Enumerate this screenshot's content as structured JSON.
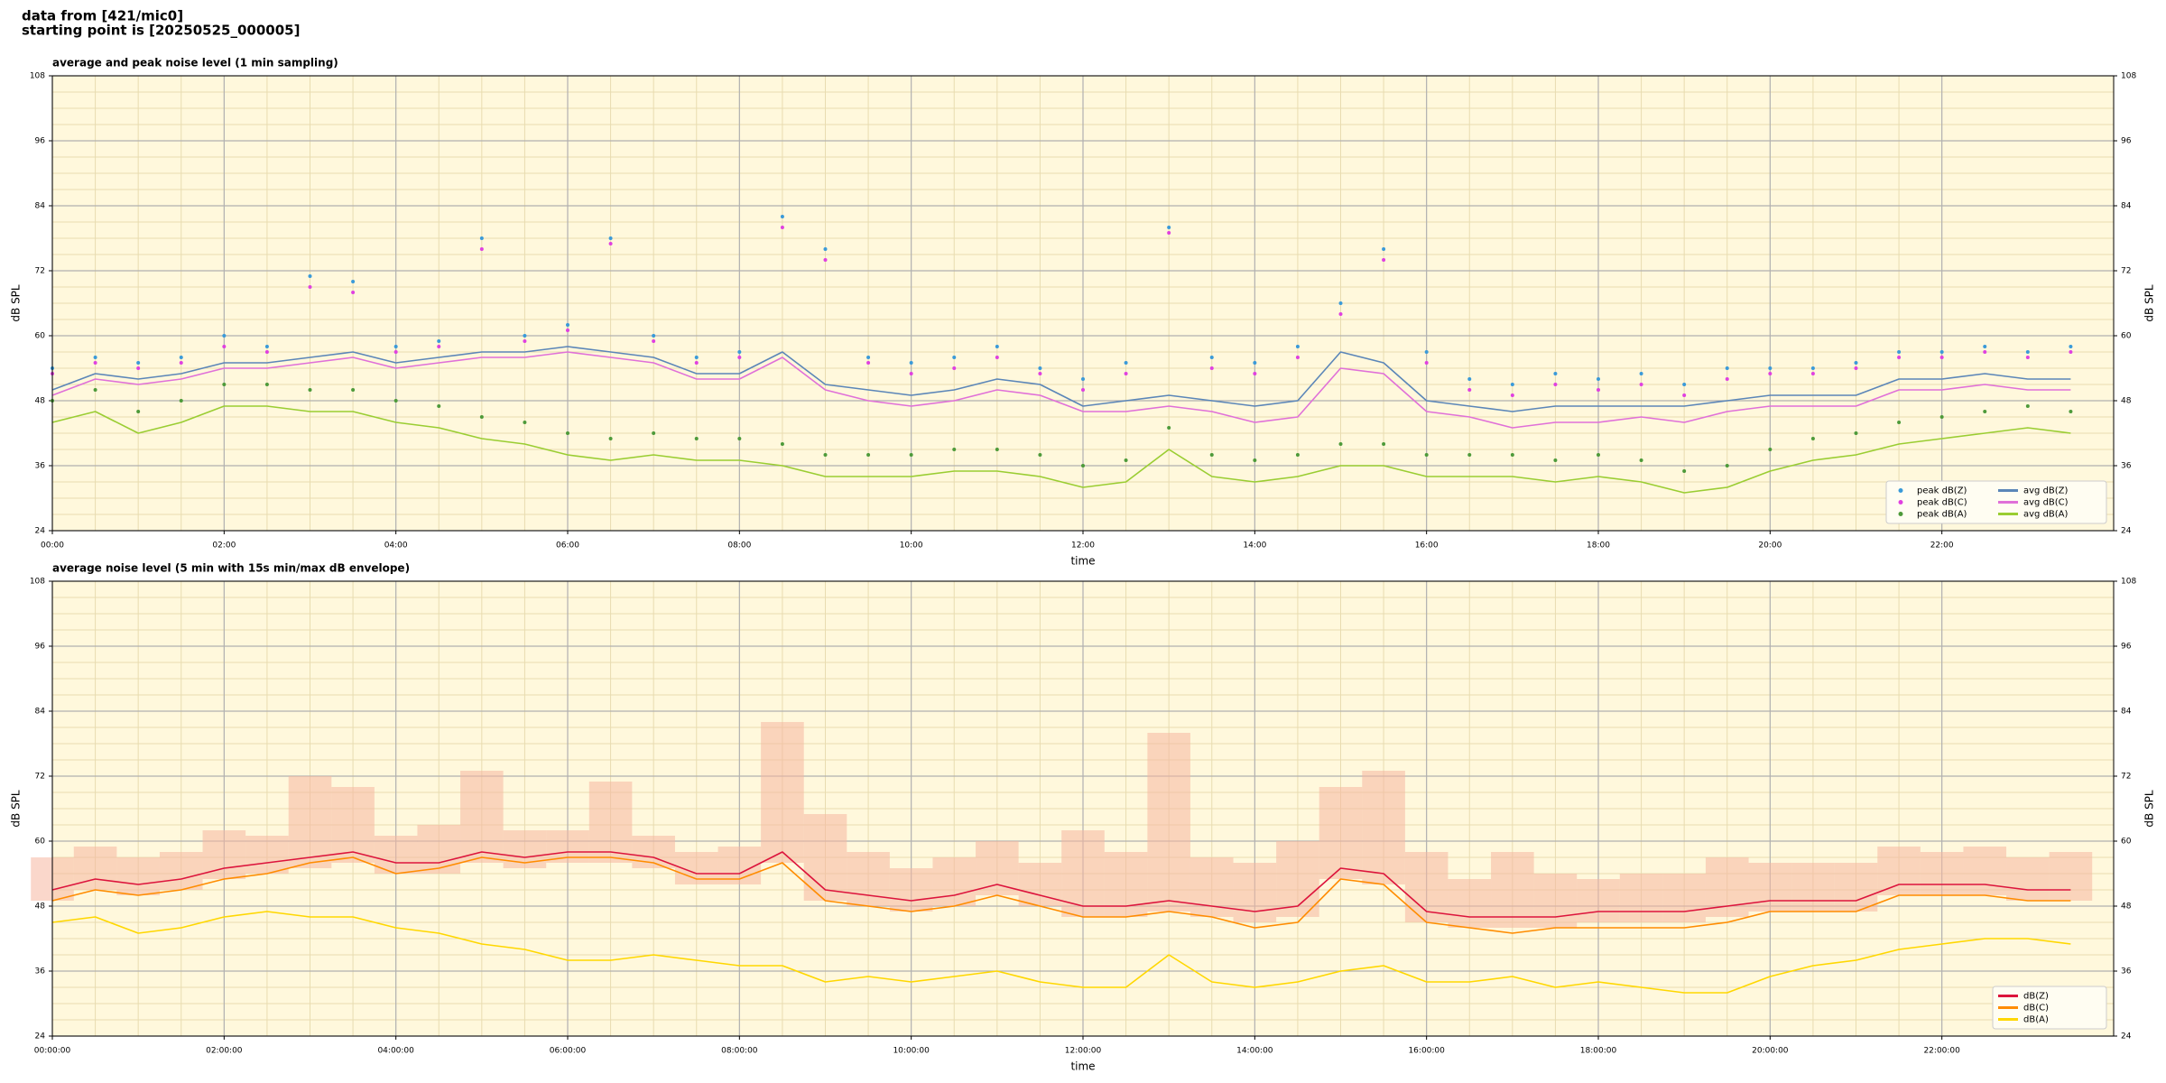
{
  "header": {
    "source": "data from [421/mic0]",
    "start": "starting point is [20250525_000005]"
  },
  "chart_data": [
    {
      "type": "line",
      "title": "average and peak noise level (1 min sampling)",
      "xlabel": "time",
      "ylabel": "dB SPL",
      "background": "#fff8dc",
      "grid": true,
      "legend": "lower right",
      "xlim": [
        0,
        24
      ],
      "ylim": [
        24,
        108
      ],
      "xticks": [
        {
          "value": 0,
          "label": "00:00"
        },
        {
          "value": 2,
          "label": "02:00"
        },
        {
          "value": 4,
          "label": "04:00"
        },
        {
          "value": 6,
          "label": "06:00"
        },
        {
          "value": 8,
          "label": "08:00"
        },
        {
          "value": 10,
          "label": "10:00"
        },
        {
          "value": 12,
          "label": "12:00"
        },
        {
          "value": 14,
          "label": "14:00"
        },
        {
          "value": 16,
          "label": "16:00"
        },
        {
          "value": 18,
          "label": "18:00"
        },
        {
          "value": 20,
          "label": "20:00"
        },
        {
          "value": 22,
          "label": "22:00"
        }
      ],
      "yticks": [
        24,
        36,
        48,
        60,
        72,
        84,
        96,
        108
      ],
      "x": [
        0,
        0.5,
        1,
        1.5,
        2,
        2.5,
        3,
        3.5,
        4,
        4.5,
        5,
        5.5,
        6,
        6.5,
        7,
        7.5,
        8,
        8.5,
        9,
        9.5,
        10,
        10.5,
        11,
        11.5,
        12,
        12.5,
        13,
        13.5,
        14,
        14.5,
        15,
        15.5,
        16,
        16.5,
        17,
        17.5,
        18,
        18.5,
        19,
        19.5,
        20,
        20.5,
        21,
        21.5,
        22,
        22.5,
        23,
        23.5
      ],
      "series": [
        {
          "name": "peak dB(Z)",
          "kind": "scatter",
          "color": "#3a9ad9",
          "values": [
            54,
            56,
            55,
            56,
            60,
            58,
            71,
            70,
            58,
            59,
            78,
            60,
            62,
            78,
            60,
            56,
            57,
            82,
            76,
            56,
            55,
            56,
            58,
            54,
            52,
            55,
            80,
            56,
            55,
            58,
            66,
            76,
            57,
            52,
            51,
            53,
            52,
            53,
            51,
            54,
            54,
            54,
            55,
            57,
            57,
            58,
            57,
            58
          ]
        },
        {
          "name": "peak dB(C)",
          "kind": "scatter",
          "color": "#e040e0",
          "values": [
            53,
            55,
            54,
            55,
            58,
            57,
            69,
            68,
            57,
            58,
            76,
            59,
            61,
            77,
            59,
            55,
            56,
            80,
            74,
            55,
            53,
            54,
            56,
            53,
            50,
            53,
            79,
            54,
            53,
            56,
            64,
            74,
            55,
            50,
            49,
            51,
            50,
            51,
            49,
            52,
            53,
            53,
            54,
            56,
            56,
            57,
            56,
            57
          ]
        },
        {
          "name": "peak dB(A)",
          "kind": "scatter",
          "color": "#4d9a3a",
          "values": [
            48,
            50,
            46,
            48,
            51,
            51,
            50,
            50,
            48,
            47,
            45,
            44,
            42,
            41,
            42,
            41,
            41,
            40,
            38,
            38,
            38,
            39,
            39,
            38,
            36,
            37,
            43,
            38,
            37,
            38,
            40,
            40,
            38,
            38,
            38,
            37,
            38,
            37,
            35,
            36,
            39,
            41,
            42,
            44,
            45,
            46,
            47,
            46
          ]
        },
        {
          "name": "avg dB(Z)",
          "kind": "line",
          "color": "#5b86b8",
          "values": [
            50,
            53,
            52,
            53,
            55,
            55,
            56,
            57,
            55,
            56,
            57,
            57,
            58,
            57,
            56,
            53,
            53,
            57,
            51,
            50,
            49,
            50,
            52,
            51,
            47,
            48,
            49,
            48,
            47,
            48,
            57,
            55,
            48,
            47,
            46,
            47,
            47,
            47,
            47,
            48,
            49,
            49,
            49,
            52,
            52,
            53,
            52,
            52
          ]
        },
        {
          "name": "avg dB(C)",
          "kind": "line",
          "color": "#e070d8",
          "values": [
            49,
            52,
            51,
            52,
            54,
            54,
            55,
            56,
            54,
            55,
            56,
            56,
            57,
            56,
            55,
            52,
            52,
            56,
            50,
            48,
            47,
            48,
            50,
            49,
            46,
            46,
            47,
            46,
            44,
            45,
            54,
            53,
            46,
            45,
            43,
            44,
            44,
            45,
            44,
            46,
            47,
            47,
            47,
            50,
            50,
            51,
            50,
            50
          ]
        },
        {
          "name": "avg dB(A)",
          "kind": "line",
          "color": "#9acd32",
          "values": [
            44,
            46,
            42,
            44,
            47,
            47,
            46,
            46,
            44,
            43,
            41,
            40,
            38,
            37,
            38,
            37,
            37,
            36,
            34,
            34,
            34,
            35,
            35,
            34,
            32,
            33,
            39,
            34,
            33,
            34,
            36,
            36,
            34,
            34,
            34,
            33,
            34,
            33,
            31,
            32,
            35,
            37,
            38,
            40,
            41,
            42,
            43,
            42
          ]
        }
      ]
    },
    {
      "type": "line",
      "title": "average noise level (5 min with 15s min/max dB envelope)",
      "xlabel": "time",
      "ylabel": "dB SPL",
      "background": "#fff8dc",
      "grid": true,
      "legend": "lower right",
      "xlim": [
        0,
        24
      ],
      "ylim": [
        24,
        108
      ],
      "xticks": [
        {
          "value": 0,
          "label": "00:00:00"
        },
        {
          "value": 2,
          "label": "02:00:00"
        },
        {
          "value": 4,
          "label": "04:00:00"
        },
        {
          "value": 6,
          "label": "06:00:00"
        },
        {
          "value": 8,
          "label": "08:00:00"
        },
        {
          "value": 10,
          "label": "10:00:00"
        },
        {
          "value": 12,
          "label": "12:00:00"
        },
        {
          "value": 14,
          "label": "14:00:00"
        },
        {
          "value": 16,
          "label": "16:00:00"
        },
        {
          "value": 18,
          "label": "18:00:00"
        },
        {
          "value": 20,
          "label": "20:00:00"
        },
        {
          "value": 22,
          "label": "22:00:00"
        }
      ],
      "yticks": [
        24,
        36,
        48,
        60,
        72,
        84,
        96,
        108
      ],
      "x": [
        0,
        0.5,
        1,
        1.5,
        2,
        2.5,
        3,
        3.5,
        4,
        4.5,
        5,
        5.5,
        6,
        6.5,
        7,
        7.5,
        8,
        8.5,
        9,
        9.5,
        10,
        10.5,
        11,
        11.5,
        12,
        12.5,
        13,
        13.5,
        14,
        14.5,
        15,
        15.5,
        16,
        16.5,
        17,
        17.5,
        18,
        18.5,
        19,
        19.5,
        20,
        20.5,
        21,
        21.5,
        22,
        22.5,
        23,
        23.5
      ],
      "envelope": {
        "color": "#f5b7a0",
        "max": [
          57,
          59,
          57,
          58,
          62,
          61,
          72,
          70,
          61,
          63,
          73,
          62,
          62,
          71,
          61,
          58,
          59,
          82,
          65,
          58,
          55,
          57,
          60,
          56,
          62,
          58,
          80,
          57,
          56,
          60,
          70,
          73,
          58,
          53,
          58,
          54,
          53,
          54,
          54,
          57,
          56,
          56,
          56,
          59,
          58,
          59,
          57,
          58
        ],
        "min": [
          49,
          51,
          50,
          51,
          53,
          54,
          55,
          56,
          54,
          54,
          56,
          55,
          56,
          56,
          55,
          52,
          52,
          56,
          49,
          48,
          47,
          48,
          50,
          48,
          46,
          46,
          47,
          46,
          45,
          46,
          53,
          52,
          45,
          44,
          44,
          44,
          45,
          45,
          45,
          46,
          47,
          47,
          47,
          50,
          50,
          50,
          49,
          49
        ]
      },
      "series": [
        {
          "name": "dB(Z)",
          "kind": "line",
          "color": "#dc143c",
          "values": [
            51,
            53,
            52,
            53,
            55,
            56,
            57,
            58,
            56,
            56,
            58,
            57,
            58,
            58,
            57,
            54,
            54,
            58,
            51,
            50,
            49,
            50,
            52,
            50,
            48,
            48,
            49,
            48,
            47,
            48,
            55,
            54,
            47,
            46,
            46,
            46,
            47,
            47,
            47,
            48,
            49,
            49,
            49,
            52,
            52,
            52,
            51,
            51
          ]
        },
        {
          "name": "dB(C)",
          "kind": "line",
          "color": "#ff8c00",
          "values": [
            49,
            51,
            50,
            51,
            53,
            54,
            56,
            57,
            54,
            55,
            57,
            56,
            57,
            57,
            56,
            53,
            53,
            56,
            49,
            48,
            47,
            48,
            50,
            48,
            46,
            46,
            47,
            46,
            44,
            45,
            53,
            52,
            45,
            44,
            43,
            44,
            44,
            44,
            44,
            45,
            47,
            47,
            47,
            50,
            50,
            50,
            49,
            49
          ]
        },
        {
          "name": "dB(A)",
          "kind": "line",
          "color": "#ffd700",
          "values": [
            45,
            46,
            43,
            44,
            46,
            47,
            46,
            46,
            44,
            43,
            41,
            40,
            38,
            38,
            39,
            38,
            37,
            37,
            34,
            35,
            34,
            35,
            36,
            34,
            33,
            33,
            39,
            34,
            33,
            34,
            36,
            37,
            34,
            34,
            35,
            33,
            34,
            33,
            32,
            32,
            35,
            37,
            38,
            40,
            41,
            42,
            42,
            41
          ]
        }
      ]
    }
  ]
}
